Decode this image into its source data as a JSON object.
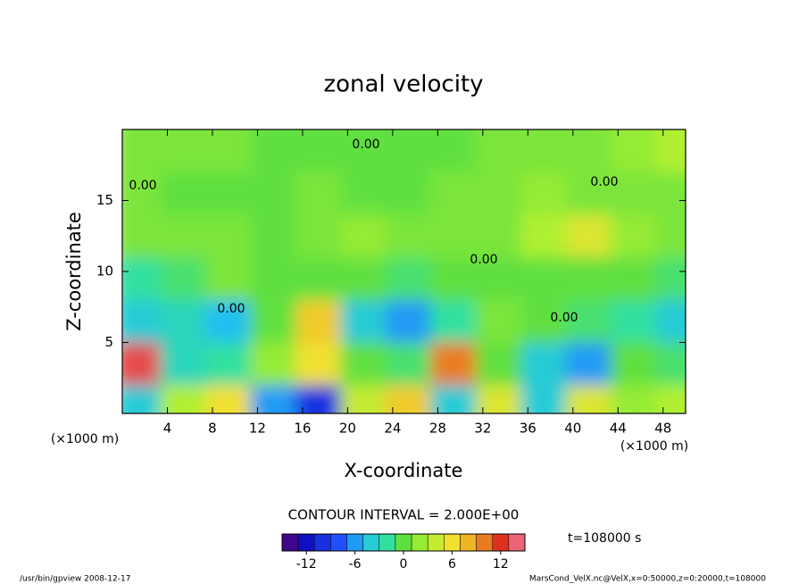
{
  "chart_data": {
    "type": "contourf",
    "title": "zonal velocity",
    "xlabel": "X-coordinate",
    "ylabel": "Z-coordinate",
    "x_unit_labels": [
      "(×1000 m)",
      "(×1000 m)"
    ],
    "xlim": [
      0,
      50
    ],
    "ylim": [
      0,
      20
    ],
    "xticks": [
      4,
      8,
      12,
      16,
      20,
      24,
      28,
      32,
      36,
      40,
      44,
      48
    ],
    "yticks": [
      5,
      10,
      15
    ],
    "x": [
      2,
      6,
      10,
      14,
      18,
      22,
      26,
      30,
      34,
      38,
      42,
      46,
      50
    ],
    "z": [
      1,
      4,
      7,
      10,
      13,
      16,
      19
    ],
    "values": [
      [
        -4,
        3,
        6,
        -6,
        -10,
        4,
        7,
        -4,
        5,
        -4,
        5,
        2,
        3
      ],
      [
        13,
        -3,
        -2,
        2,
        6,
        0,
        -1,
        10,
        0,
        -4,
        -6,
        0,
        -1
      ],
      [
        -4,
        -3,
        -5,
        0,
        7,
        -4,
        -6,
        -2,
        1,
        0,
        -1,
        -2,
        -4
      ],
      [
        -2,
        -1,
        1,
        0,
        0,
        0,
        -1,
        0,
        0,
        0,
        0,
        0,
        -1
      ],
      [
        1,
        1,
        1,
        0,
        1,
        2,
        1,
        1,
        1,
        3,
        5,
        2,
        1
      ],
      [
        1,
        0,
        0,
        0,
        1,
        0,
        0,
        1,
        1,
        2,
        1,
        1,
        1
      ],
      [
        1,
        1,
        1,
        0,
        0,
        0,
        0,
        0,
        1,
        1,
        1,
        2,
        3
      ]
    ],
    "contour_labels": [
      "0.00",
      "0.00",
      "0.00",
      "0.00",
      "0.00",
      "0.00"
    ],
    "contour_interval_label": "CONTOUR INTERVAL = 2.000E+00",
    "contour_interval": 2,
    "colorbar_lim": [
      -15,
      15
    ],
    "colorbar_ticks": [
      -12,
      -6,
      0,
      6,
      12
    ],
    "colormap_values": [
      -15,
      -12,
      -8,
      -5,
      -2,
      0,
      3,
      6,
      9,
      12,
      15
    ],
    "colormap": [
      "#5a0070",
      "#1010c0",
      "#2050ff",
      "#20c0f0",
      "#30e0a0",
      "#60e040",
      "#b0f030",
      "#f0e030",
      "#f0a020",
      "#e03020",
      "#f080a0"
    ],
    "time_label": "t=108000 s",
    "footer_left": "/usr/bin/gpview  2008-12-17",
    "footer_right": "MarsCond_VelX.nc@VelX,x=0:50000,z=0:20000,t=108000"
  }
}
